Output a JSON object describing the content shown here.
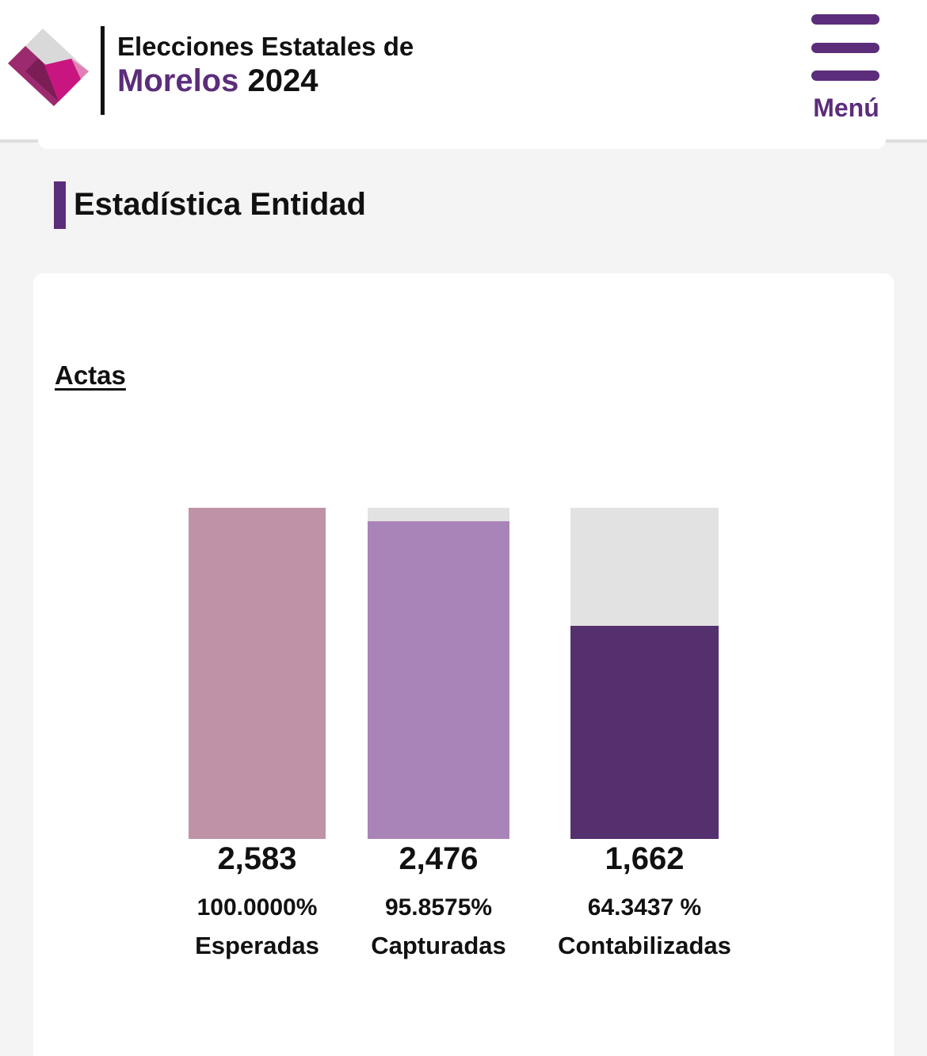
{
  "header": {
    "title_line1": "Elecciones Estatales de",
    "title_state": "Morelos",
    "title_year": "2024",
    "menu_label": "Menú",
    "logo_icon": "ine-diamond-logo-icon",
    "menu_icon": "hamburger-icon"
  },
  "section": {
    "title": "Estadística Entidad"
  },
  "card": {
    "title": "Actas"
  },
  "colors": {
    "brand_purple": "#5b2d7a",
    "bar_esperadas": "#c092a8",
    "bar_capturadas": "#a984b8",
    "bar_contabilizadas": "#54306f",
    "bar_background": "#e2e2e2"
  },
  "chart_data": {
    "type": "bar",
    "categories": [
      "Esperadas",
      "Capturadas",
      "Contabilizadas"
    ],
    "values": [
      2583,
      2476,
      1662
    ],
    "value_labels": [
      "2,583",
      "2,476",
      "1,662"
    ],
    "percent_labels": [
      "100.0000%",
      "95.8575%",
      "64.3437 %"
    ],
    "fill_fraction": [
      1.0,
      0.958575,
      0.643437
    ],
    "ylim": [
      0,
      2583
    ]
  }
}
